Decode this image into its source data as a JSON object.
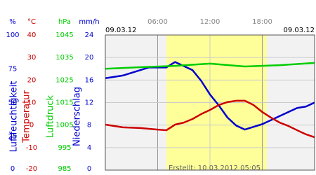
{
  "chart_data": {
    "type": "line",
    "date_left": "09.03.12",
    "date_right": "09.03.12",
    "footer": "Erstellt: 10.03.2012 05:05",
    "xlim": [
      0,
      24
    ],
    "xticks": [
      {
        "value": 6,
        "label": "06:00"
      },
      {
        "value": 12,
        "label": "12:00"
      },
      {
        "value": 18,
        "label": "18:00"
      }
    ],
    "daylight": [
      7,
      18.5
    ],
    "grid": true,
    "axes": [
      {
        "unit": "%",
        "label": "Luftfeuchtigkeit",
        "color": "#0000cc",
        "ylim": [
          0,
          100
        ],
        "yticks": [
          0,
          25,
          50,
          75,
          100
        ],
        "x": [
          0,
          2,
          5,
          7,
          8,
          9,
          10,
          11,
          12,
          13,
          14,
          15,
          16,
          17,
          18,
          19,
          20,
          21,
          22,
          23,
          24
        ],
        "values": [
          68,
          70,
          76,
          76,
          80,
          77,
          74,
          66,
          56,
          48,
          39,
          33,
          30,
          32,
          34,
          37,
          40,
          43,
          46,
          47,
          50
        ]
      },
      {
        "unit": "°C",
        "label": "Temperatur",
        "color": "#cc0000",
        "ylim": [
          -20,
          40
        ],
        "yticks": [
          -20,
          -10,
          0,
          10,
          20,
          30,
          40
        ],
        "x": [
          0,
          2,
          4,
          6,
          7,
          8,
          9,
          10,
          11,
          12,
          13,
          14,
          15,
          16,
          17,
          18,
          19,
          20,
          21,
          22,
          23,
          24
        ],
        "values": [
          0.2,
          -1.0,
          -1.3,
          -2.0,
          -2.3,
          0.2,
          1.1,
          2.7,
          4.9,
          6.7,
          8.9,
          10.2,
          10.8,
          10.8,
          8.9,
          5.8,
          3.3,
          1.1,
          -0.4,
          -2.3,
          -4.1,
          -5.4
        ]
      },
      {
        "unit": "hPa",
        "label": "Luftdruck",
        "color": "#00cc00",
        "ylim": [
          985,
          1045
        ],
        "yticks": [
          985,
          995,
          1005,
          1015,
          1025,
          1035,
          1045
        ],
        "x": [
          0,
          4,
          8,
          12,
          16,
          20,
          24
        ],
        "values": [
          1030,
          1030.7,
          1031.3,
          1032.3,
          1031,
          1031.6,
          1032.6
        ]
      },
      {
        "unit": "mm/h",
        "label": "Niederschlag",
        "color": "#0000cc",
        "ylim": [
          0,
          24
        ],
        "yticks": [
          0,
          4,
          8,
          12,
          16,
          20,
          24
        ],
        "x": [],
        "values": []
      }
    ]
  }
}
